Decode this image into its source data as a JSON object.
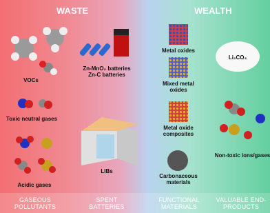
{
  "header": {
    "left": "WASTE",
    "right": "WEALTH"
  },
  "gaseous": {
    "vocs": "VOCs",
    "toxic": "Toxic neutral gases",
    "acidic": "Acidic gases"
  },
  "batteries": {
    "zn_mno2": "Zn-MnO₂ batteries",
    "zn_c": "Zn-C batteries",
    "libs": "LIBs"
  },
  "materials": {
    "metal_oxides": "Metal oxides",
    "mixed": "Mixed metal oxides",
    "composites": "Metal oxide composites",
    "carbon": "Carbonaceous materials"
  },
  "products": {
    "li2co3": "Li₂CO₃",
    "nontoxic": "Non-toxic ions/gases"
  },
  "footer": {
    "col1": "GASEOUS POLLUTANTS",
    "col2": "SPENT BATTERIES",
    "col3": "FUNCTIONAL MATERIALS",
    "col4": "VALUABLE END-PRODUCTS"
  }
}
